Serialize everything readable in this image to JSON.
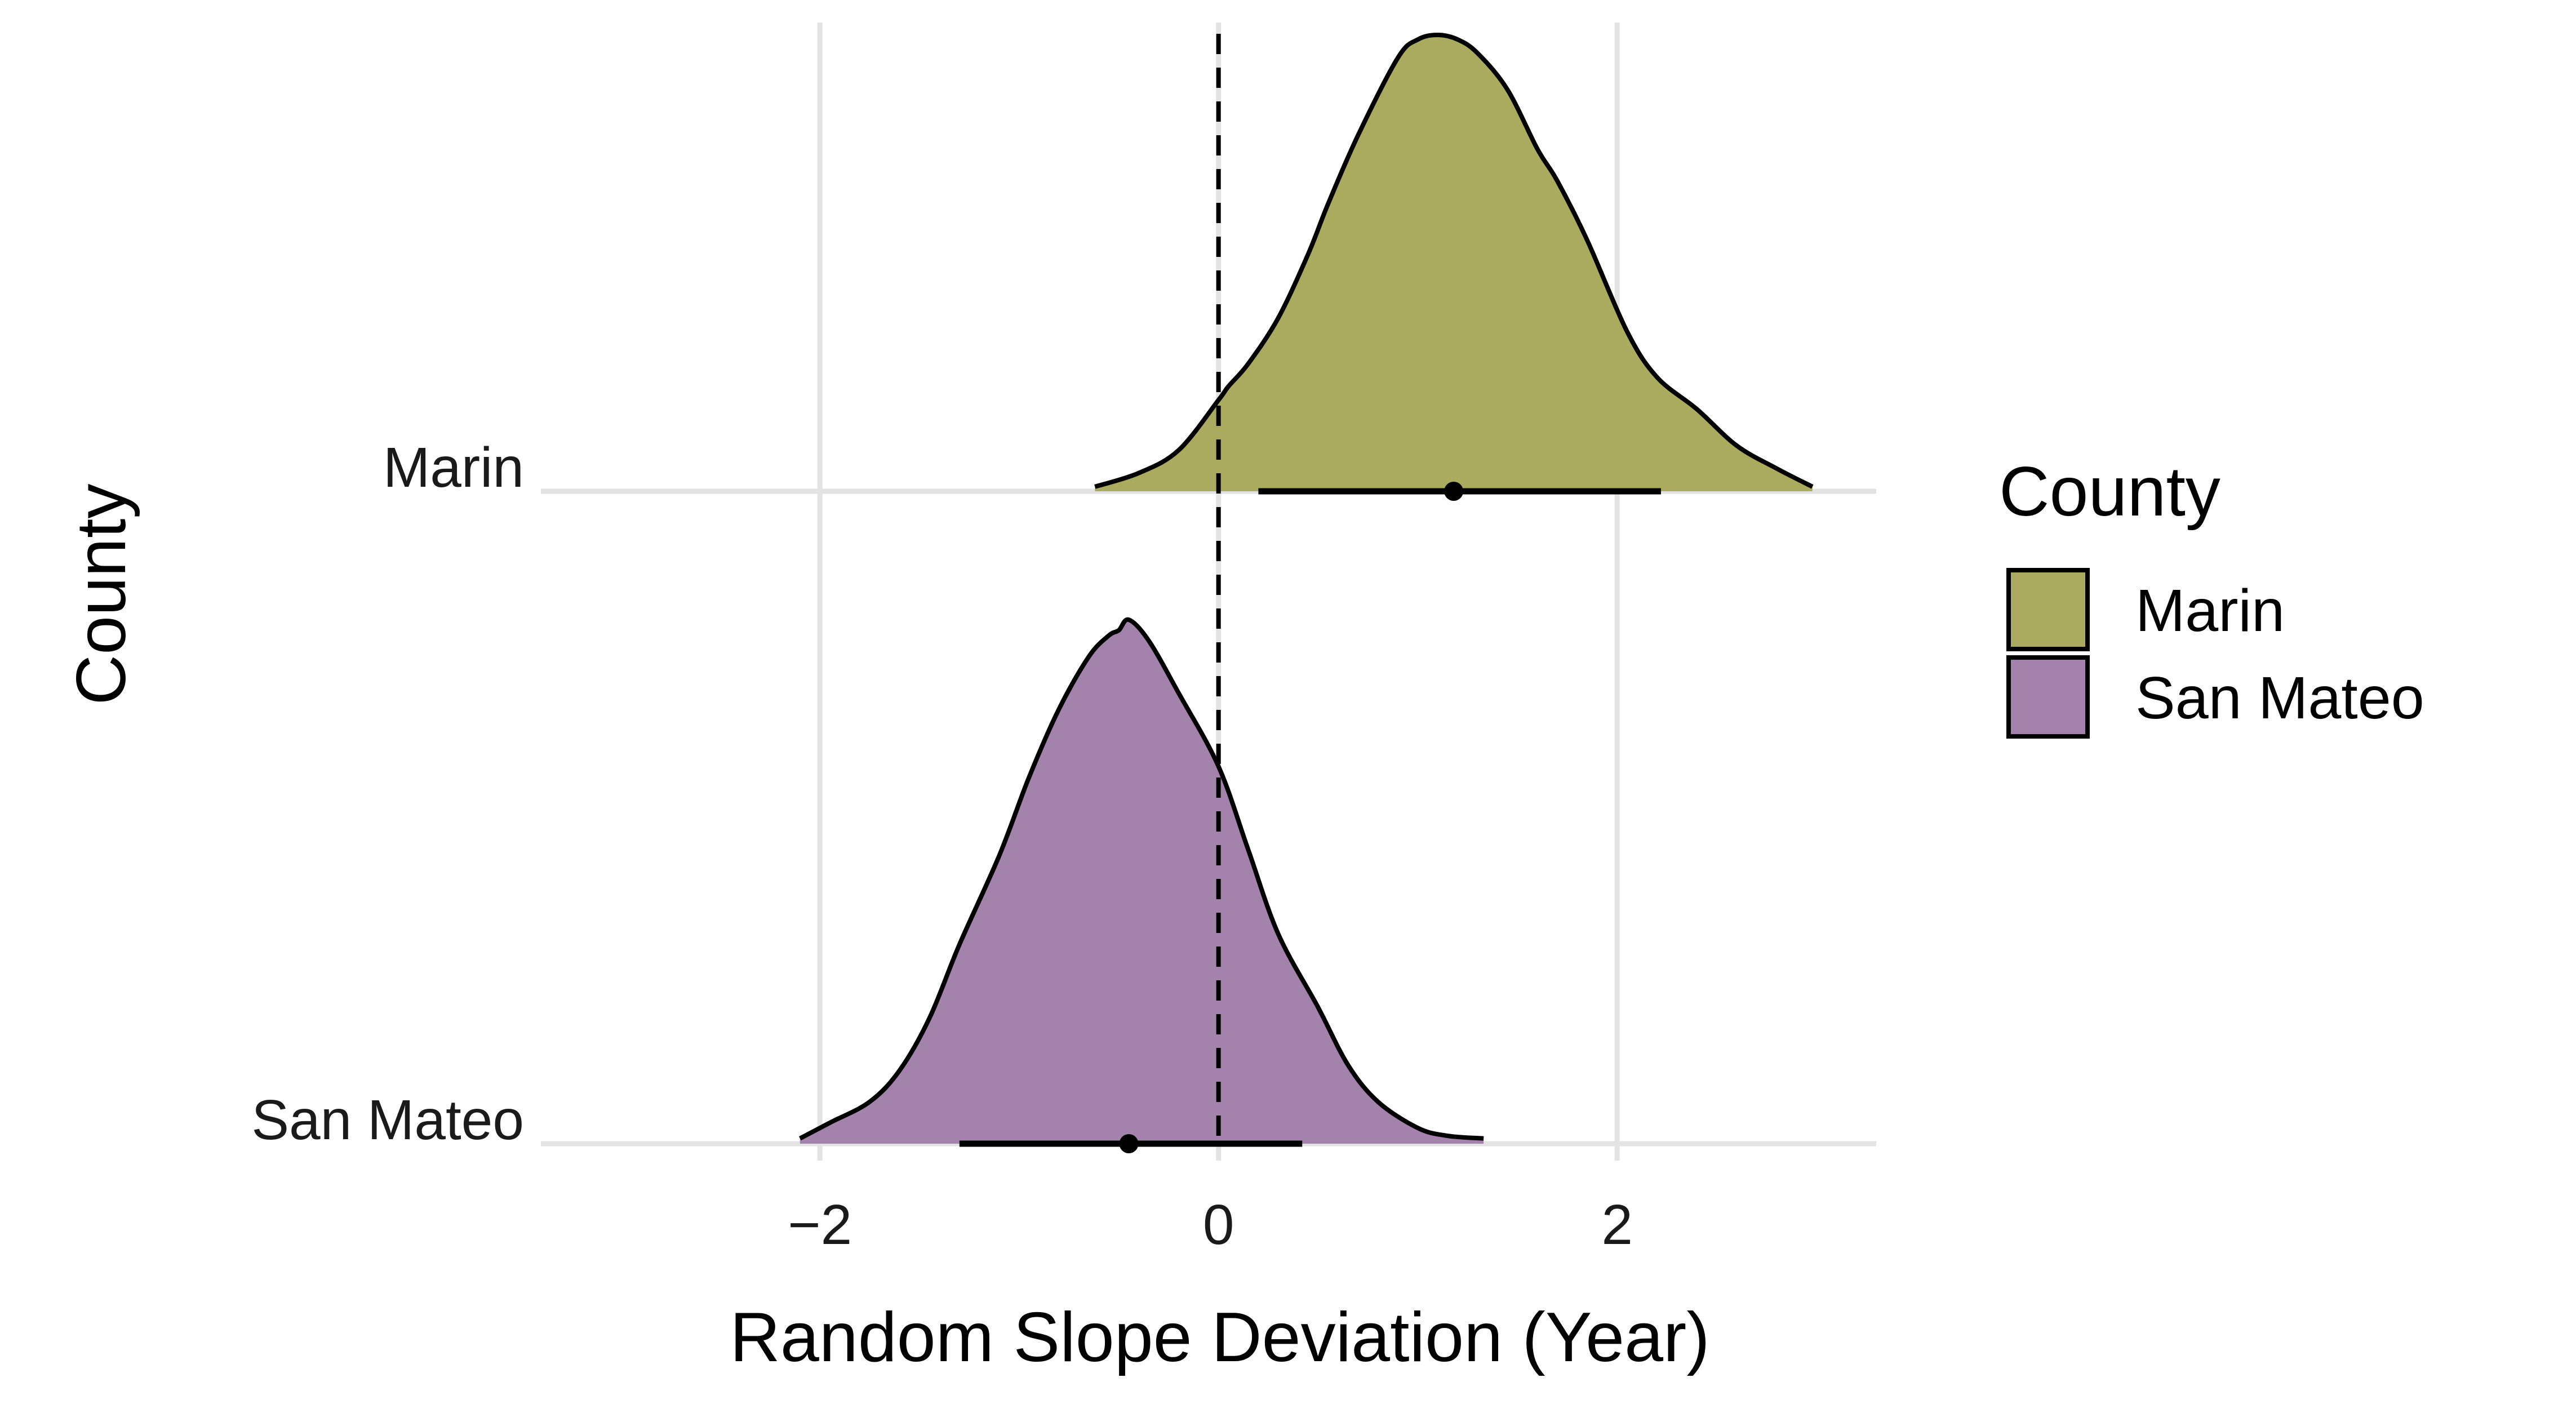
{
  "chart_data": {
    "type": "area",
    "subtype": "ridgeline-density",
    "title": "",
    "xlabel": "Random Slope Deviation (Year)",
    "ylabel": "County",
    "xlim": [
      -3.4,
      3.3
    ],
    "x_ticks": [
      {
        "value": -2,
        "label": "−2"
      },
      {
        "value": 0,
        "label": "0"
      },
      {
        "value": 2,
        "label": "2"
      }
    ],
    "categories": [
      "Marin",
      "San Mateo"
    ],
    "reference_line": {
      "x": 0,
      "style": "dashed"
    },
    "grid": true,
    "legend": {
      "title": "County",
      "position": "right"
    },
    "series": [
      {
        "name": "Marin",
        "color": "#abab5f",
        "density": {
          "x": [
            -0.62,
            -0.4,
            -0.2,
            0.0,
            0.05,
            0.15,
            0.3,
            0.45,
            0.55,
            0.7,
            0.9,
            1.0,
            1.1,
            1.2,
            1.3,
            1.45,
            1.6,
            1.7,
            1.85,
            2.05,
            2.2,
            2.4,
            2.6,
            2.8,
            2.98
          ],
          "y": [
            0.01,
            0.04,
            0.09,
            0.2,
            0.23,
            0.28,
            0.38,
            0.52,
            0.63,
            0.78,
            0.95,
            0.99,
            1.0,
            0.99,
            0.96,
            0.88,
            0.75,
            0.68,
            0.55,
            0.35,
            0.25,
            0.18,
            0.1,
            0.05,
            0.01
          ]
        },
        "median": 1.18,
        "interval": [
          0.2,
          2.22
        ]
      },
      {
        "name": "San Mateo",
        "color": "#a382ab",
        "density": {
          "x": [
            -2.1,
            -1.95,
            -1.75,
            -1.6,
            -1.45,
            -1.3,
            -1.1,
            -0.95,
            -0.8,
            -0.65,
            -0.55,
            -0.5,
            -0.45,
            -0.35,
            -0.2,
            0.0,
            0.15,
            0.3,
            0.5,
            0.65,
            0.8,
            1.0,
            1.15,
            1.33
          ],
          "y": [
            0.01,
            0.04,
            0.08,
            0.14,
            0.24,
            0.38,
            0.55,
            0.7,
            0.83,
            0.93,
            0.97,
            0.98,
            1.0,
            0.96,
            0.86,
            0.72,
            0.56,
            0.4,
            0.26,
            0.15,
            0.08,
            0.03,
            0.015,
            0.01
          ]
        },
        "median": -0.45,
        "interval": [
          -1.3,
          0.42
        ]
      }
    ]
  }
}
